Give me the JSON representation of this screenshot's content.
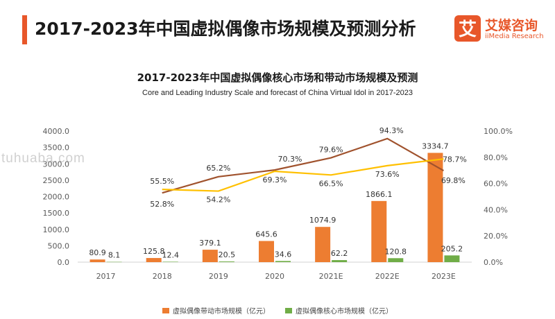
{
  "header": {
    "title": "2017-2023年中国虚拟偶像市场规模及预测分析",
    "logo_cn": "艾媒咨询",
    "logo_en": "iiMedia Research",
    "logo_glyph": "艾"
  },
  "watermark": "tuhuaba.com",
  "colors": {
    "accent": "#e8572a",
    "bar_driven": "#ed7d31",
    "bar_core": "#70ad47",
    "line_driven": "#a0522d",
    "line_core": "#ffc000"
  },
  "chart_data": {
    "type": "bar",
    "title": "2017-2023年中国虚拟偶像核心市场和带动市场规模及预测",
    "subtitle": "Core and Leading Industry Scale and forecast of China Virtual Idol in 2017-2023",
    "categories": [
      "2017",
      "2018",
      "2019",
      "2020",
      "2021E",
      "2022E",
      "2023E"
    ],
    "ylim": [
      0,
      4000
    ],
    "yticks": [
      "0.0",
      "500.0",
      "1000.0",
      "1500.0",
      "2000.0",
      "2500.0",
      "3000.0",
      "3500.0",
      "4000.0"
    ],
    "y2lim": [
      0,
      100
    ],
    "y2ticks": [
      "0.0%",
      "20.0%",
      "40.0%",
      "60.0%",
      "80.0%",
      "100.0%"
    ],
    "legend_position": "bottom",
    "series": [
      {
        "name": "虚拟偶像带动市场规模（亿元）",
        "kind": "bar",
        "values": [
          80.9,
          125.8,
          379.1,
          645.6,
          1074.9,
          1866.1,
          3334.7
        ],
        "labels": [
          "80.9",
          "125.8",
          "379.1",
          "645.6",
          "1074.9",
          "1866.1",
          "3334.7"
        ]
      },
      {
        "name": "虚拟偶像核心市场规模（亿元）",
        "kind": "bar",
        "values": [
          8.1,
          12.4,
          20.5,
          34.6,
          62.2,
          120.8,
          205.2
        ],
        "labels": [
          "8.1",
          "12.4",
          "20.5",
          "34.6",
          "62.2",
          "120.8",
          "205.2"
        ]
      },
      {
        "kind": "line",
        "axis": "right",
        "values": [
          null,
          52.8,
          65.2,
          70.3,
          79.6,
          94.3,
          69.8
        ],
        "labels": [
          null,
          "52.8%",
          "65.2%",
          "70.3%",
          "79.6%",
          "94.3%",
          "69.8%"
        ]
      },
      {
        "kind": "line",
        "axis": "right",
        "values": [
          null,
          55.5,
          54.2,
          69.3,
          66.5,
          73.6,
          78.7
        ],
        "labels": [
          null,
          "55.5%",
          "54.2%",
          "69.3%",
          "66.5%",
          "73.6%",
          "78.7%"
        ]
      }
    ]
  }
}
